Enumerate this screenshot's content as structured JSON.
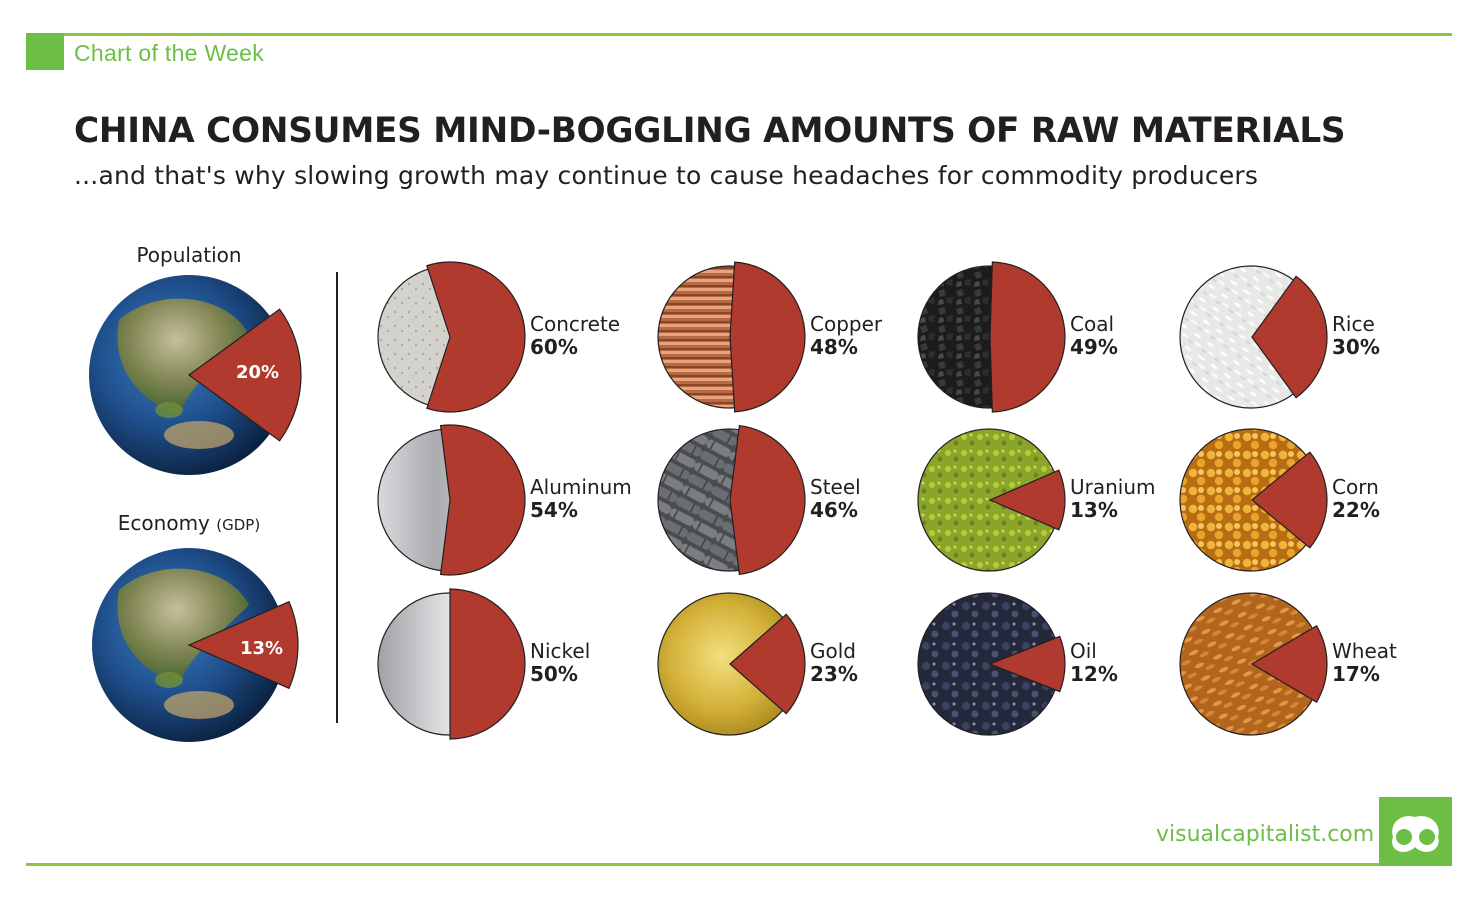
{
  "header": {
    "kicker": "Chart of the Week",
    "title": "CHINA CONSUMES MIND-BOGGLING AMOUNTS OF RAW MATERIALS",
    "subtitle": "...and that's why slowing growth may continue to cause headaches for commodity producers"
  },
  "footer": {
    "brand": "visualcapitalist.com"
  },
  "colors": {
    "accent_green": "#6cbe45",
    "slice_red": "#b03a2e"
  },
  "chart_data": [
    {
      "type": "pie",
      "title": "",
      "unit": "%",
      "categories": [
        "Population",
        "Economy"
      ],
      "labels": {
        "Population": "Population",
        "Economy": "Economy",
        "Economy_suffix": "(GDP)"
      },
      "values": [
        20,
        13
      ],
      "value_labels": [
        "20%",
        "13%"
      ]
    },
    {
      "type": "pie",
      "title": "",
      "unit": "%",
      "categories": [
        "Concrete",
        "Copper",
        "Coal",
        "Rice",
        "Aluminum",
        "Steel",
        "Uranium",
        "Corn",
        "Nickel",
        "Gold",
        "Oil",
        "Wheat"
      ],
      "values": [
        60,
        48,
        49,
        30,
        54,
        46,
        13,
        22,
        50,
        23,
        12,
        17
      ],
      "value_labels": [
        "60%",
        "48%",
        "49%",
        "30%",
        "54%",
        "46%",
        "13%",
        "22%",
        "50%",
        "23%",
        "12%",
        "17%"
      ],
      "textures": [
        "concrete",
        "copper",
        "coal",
        "rice",
        "aluminum",
        "steel",
        "uranium",
        "corn",
        "nickel",
        "gold",
        "oil",
        "wheat"
      ]
    }
  ]
}
